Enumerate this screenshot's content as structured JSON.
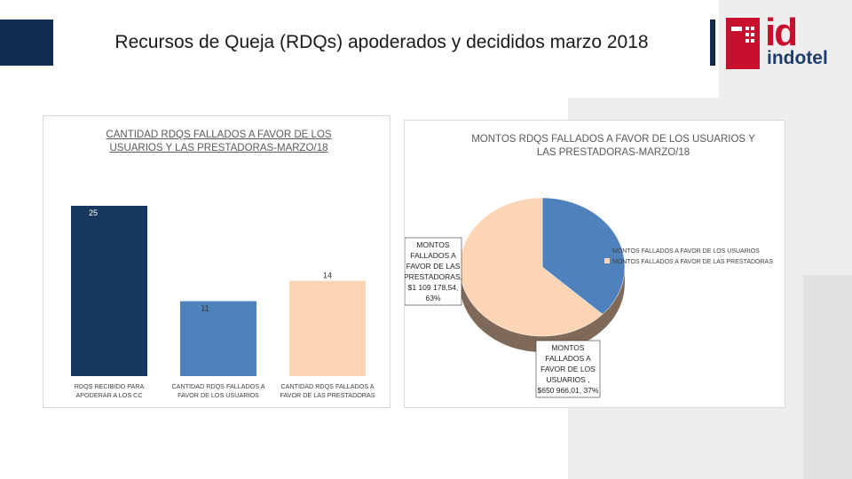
{
  "slide": {
    "title": "Recursos de Queja (RDQs) apoderados y decididos  marzo 2018"
  },
  "logo": {
    "mark": "id",
    "name": "indotel",
    "brand_red": "#c8102e",
    "brand_blue": "#1f3d6b"
  },
  "colors": {
    "header_navy": "#112d52",
    "bar_navy": "#17375e",
    "bar_blue": "#4f81bd",
    "bar_peach": "#fcd5b5",
    "pie_blue": "#4f81bd",
    "pie_peach": "#fcd5b5",
    "pie_side": "#7f6a5a"
  },
  "chart_data": [
    {
      "type": "bar",
      "title": "CANTIDAD RDQS FALLADOS A FAVOR DE LOS USUARIOS Y LAS PRESTADORAS-MARZO/18",
      "categories": [
        "RDQS RECIBIDO PARA APODERAR A LOS CC",
        "CANTIDAD RDQS FALLADOS A FAVOR DE LOS USUARIOS",
        "CANTIDAD RDQS FALLADOS A FAVOR DE LAS PRESTADORAS"
      ],
      "values": [
        25,
        11,
        14
      ],
      "data_labels": [
        "25",
        "11",
        "14"
      ],
      "ylim": [
        0,
        25
      ],
      "grid": false
    },
    {
      "type": "pie",
      "title": "MONTOS RDQS FALLADOS A FAVOR DE LOS  USUARIOS Y LAS PRESTADORAS-MARZO/18",
      "slices": [
        {
          "name": "MONTOS  FALLADOS A FAVOR DE LOS USUARIOS",
          "value": 650966.01,
          "percent": 37,
          "label_lines": [
            "MONTOS",
            "FALLADOS A",
            "FAVOR DE LOS",
            "USUARIOS ,",
            "$650 966,01, 37%"
          ]
        },
        {
          "name": "MONTOS  FALLADOS  A FAVOR DE LAS PRESTADORAS",
          "value": 1109178.54,
          "percent": 63,
          "label_lines": [
            "MONTOS",
            "FALLADOS  A",
            "FAVOR DE LAS",
            "PRESTADORAS,",
            "$1 109 178,54,",
            "63%"
          ]
        }
      ],
      "legend_position": "right",
      "style": "3d"
    }
  ]
}
